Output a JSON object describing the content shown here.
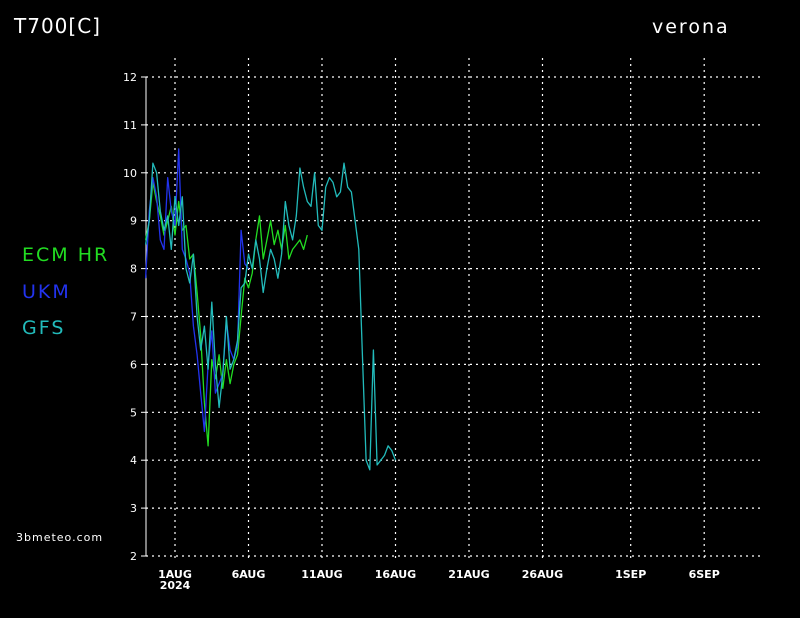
{
  "header": {
    "title": "T700[C]",
    "location": "verona"
  },
  "footer": {
    "site": "3bmeteo.com"
  },
  "colors": {
    "ecm": "#22dd22",
    "ukm": "#2233ee",
    "gfs": "#22bbbb",
    "grid": "#ffffff"
  },
  "chart_data": {
    "type": "line",
    "title": "T700[C]",
    "xlabel": "",
    "ylabel": "",
    "grid": true,
    "legend_position": "left",
    "ylim": [
      2,
      12
    ],
    "y_ticks": [
      "2",
      "3",
      "4",
      "5",
      "6",
      "7",
      "8",
      "9",
      "10",
      "11",
      "12"
    ],
    "x_ticks": [
      {
        "day": 0,
        "label": "1AUG",
        "sub": "2024"
      },
      {
        "day": 5,
        "label": "6AUG",
        "sub": ""
      },
      {
        "day": 10,
        "label": "11AUG",
        "sub": ""
      },
      {
        "day": 15,
        "label": "16AUG",
        "sub": ""
      },
      {
        "day": 20,
        "label": "21AUG",
        "sub": ""
      },
      {
        "day": 25,
        "label": "26AUG",
        "sub": ""
      },
      {
        "day": 31,
        "label": "1SEP",
        "sub": ""
      },
      {
        "day": 36,
        "label": "6SEP",
        "sub": ""
      }
    ],
    "series": [
      {
        "name": "ECM HR",
        "color": "#22dd22",
        "x": [
          -2,
          -1.75,
          -1.5,
          -1.25,
          -1,
          -0.75,
          -0.5,
          -0.25,
          0,
          0.25,
          0.5,
          0.75,
          1,
          1.25,
          1.5,
          1.75,
          2,
          2.25,
          2.5,
          2.75,
          3,
          3.25,
          3.5,
          3.75,
          4,
          4.25,
          4.5,
          4.75,
          5,
          5.25,
          5.5,
          5.75,
          6,
          6.25,
          6.5,
          6.75,
          7,
          7.25,
          7.5,
          7.75,
          8,
          8.25,
          8.5,
          8.75,
          9
        ],
        "y": [
          8.6,
          9.0,
          9.8,
          9.4,
          9.1,
          8.7,
          9.0,
          9.3,
          8.7,
          9.4,
          8.8,
          8.9,
          8.2,
          8.3,
          7.5,
          6.6,
          5.2,
          4.3,
          6.1,
          5.7,
          6.2,
          5.5,
          6.1,
          5.6,
          6.0,
          6.2,
          7.0,
          7.8,
          7.6,
          7.9,
          8.6,
          9.1,
          8.2,
          8.6,
          9.0,
          8.5,
          8.8,
          8.4,
          8.9,
          8.2,
          8.4,
          8.5,
          8.6,
          8.4,
          8.7
        ]
      },
      {
        "name": "UKM",
        "color": "#2233ee",
        "x": [
          -2,
          -1.75,
          -1.5,
          -1.25,
          -1,
          -0.75,
          -0.5,
          -0.25,
          0,
          0.25,
          0.5,
          0.75,
          1,
          1.25,
          1.5,
          1.75,
          2,
          2.25,
          2.5,
          2.75,
          3,
          3.25,
          3.5,
          3.75,
          4,
          4.25,
          4.5,
          4.75,
          5
        ],
        "y": [
          7.8,
          9.2,
          9.9,
          9.5,
          8.6,
          8.4,
          9.9,
          9.2,
          8.9,
          10.5,
          8.4,
          8.2,
          7.9,
          6.8,
          6.2,
          5.4,
          4.6,
          6.0,
          6.7,
          5.4,
          5.6,
          5.8,
          6.9,
          6.3,
          6.1,
          6.4,
          8.8,
          8.1,
          8.0
        ]
      },
      {
        "name": "GFS",
        "color": "#22bbbb",
        "x": [
          -2,
          -1.75,
          -1.5,
          -1.25,
          -1,
          -0.75,
          -0.5,
          -0.25,
          0,
          0.25,
          0.5,
          0.75,
          1,
          1.25,
          1.5,
          1.75,
          2,
          2.25,
          2.5,
          2.75,
          3,
          3.25,
          3.5,
          3.75,
          4,
          4.25,
          4.5,
          4.75,
          5,
          5.25,
          5.5,
          5.75,
          6,
          6.25,
          6.5,
          6.75,
          7,
          7.25,
          7.5,
          7.75,
          8,
          8.25,
          8.5,
          8.75,
          9,
          9.25,
          9.5,
          9.75,
          10,
          10.25,
          10.5,
          10.75,
          11,
          11.25,
          11.5,
          11.75,
          12,
          12.25,
          12.5,
          12.75,
          13,
          13.25,
          13.5,
          13.75,
          14,
          14.25,
          14.5,
          14.75,
          15
        ],
        "y": [
          8.5,
          9.0,
          10.2,
          10.0,
          9.2,
          8.8,
          9.1,
          8.4,
          9.5,
          8.9,
          9.5,
          8.0,
          7.7,
          8.3,
          7.0,
          6.3,
          6.8,
          5.9,
          7.3,
          6.0,
          5.1,
          5.8,
          7.0,
          5.9,
          6.1,
          6.5,
          7.6,
          7.7,
          8.3,
          8.0,
          8.6,
          8.2,
          7.5,
          8.0,
          8.4,
          8.2,
          7.8,
          8.3,
          9.4,
          8.9,
          8.6,
          9.1,
          10.1,
          9.7,
          9.4,
          9.3,
          10.0,
          8.9,
          8.8,
          9.7,
          9.9,
          9.8,
          9.5,
          9.6,
          10.2,
          9.7,
          9.6,
          9.0,
          8.4,
          6.2,
          4.0,
          3.8,
          6.3,
          3.9,
          4.0,
          4.1,
          4.3,
          4.2,
          4.0
        ]
      }
    ]
  }
}
